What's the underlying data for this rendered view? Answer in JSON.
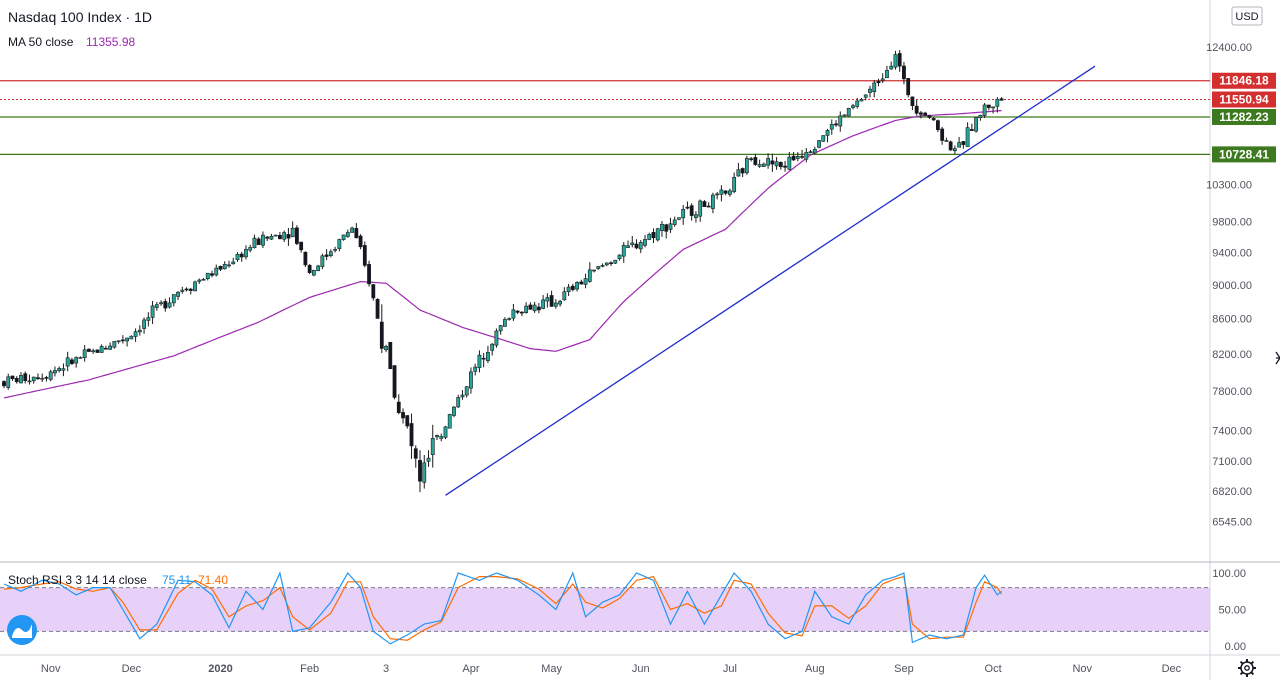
{
  "header": {
    "title": "Nasdaq 100 Index · 1D",
    "ma_label": "MA 50 close",
    "ma_value": "11355.98",
    "currency": "USD"
  },
  "indicator": {
    "label": "Stoch RSI 3 3 14 14 close",
    "k_value": "75.11",
    "d_value": "71.40",
    "upper": 80,
    "lower": 20,
    "ticks": [
      "100.00",
      "50.00",
      "0.00"
    ]
  },
  "colors": {
    "up": "#26a69a",
    "up_fill": "#ffffff",
    "candle": "#1a1a1a",
    "down_fill": "#131722",
    "ma": "#9c27b0",
    "trend": "#1e2bcc",
    "resistance": "#d32f2f",
    "support": "#3d7a1f",
    "k_line": "#2196f3",
    "d_line": "#ff6d00",
    "band": "#e1c5f7"
  },
  "chart_data": {
    "type": "candlestick",
    "title": "Nasdaq 100 Index · 1D",
    "y_ticks": [
      6545,
      6820,
      7100,
      7400,
      7800,
      8200,
      8600,
      9000,
      9400,
      9800,
      10300,
      12400
    ],
    "x_ticks": [
      "Nov",
      "Dec",
      "2020",
      "Feb",
      "3",
      "Apr",
      "May",
      "Jun",
      "Jul",
      "Aug",
      "Sep",
      "Oct",
      "Nov",
      "Dec"
    ],
    "x_tick_index": [
      11,
      30,
      51,
      72,
      90,
      110,
      129,
      150,
      171,
      191,
      212,
      233,
      254,
      275
    ],
    "ylim": [
      6350,
      13100
    ],
    "price_levels": [
      {
        "value": 11846.18,
        "label": "11846.18",
        "color": "#d32f2f",
        "kind": "resistance"
      },
      {
        "value": 11550.94,
        "label": "11550.94",
        "color": "#d32f2f",
        "kind": "last-price"
      },
      {
        "value": 11282.23,
        "label": "11282.23",
        "color": "#3d7a1f",
        "kind": "support"
      },
      {
        "value": 10728.41,
        "label": "10728.41",
        "color": "#3d7a1f",
        "kind": "support"
      }
    ],
    "price_anchors": [
      [
        0,
        7900
      ],
      [
        10,
        7990
      ],
      [
        20,
        8200
      ],
      [
        30,
        8420
      ],
      [
        40,
        8900
      ],
      [
        50,
        9170
      ],
      [
        60,
        9550
      ],
      [
        68,
        9700
      ],
      [
        72,
        9150
      ],
      [
        82,
        9720
      ],
      [
        86,
        9050
      ],
      [
        90,
        8150
      ],
      [
        94,
        7500
      ],
      [
        98,
        6950
      ],
      [
        101,
        7200
      ],
      [
        108,
        7800
      ],
      [
        114,
        8300
      ],
      [
        120,
        8700
      ],
      [
        130,
        8800
      ],
      [
        140,
        9200
      ],
      [
        150,
        9550
      ],
      [
        160,
        9900
      ],
      [
        170,
        10150
      ],
      [
        176,
        10700
      ],
      [
        183,
        10550
      ],
      [
        190,
        10850
      ],
      [
        197,
        11250
      ],
      [
        205,
        11750
      ],
      [
        210,
        12300
      ],
      [
        212,
        11800
      ],
      [
        214,
        11500
      ],
      [
        218,
        11300
      ],
      [
        222,
        10900
      ],
      [
        225,
        10800
      ],
      [
        228,
        11150
      ],
      [
        231,
        11420
      ],
      [
        235,
        11550
      ]
    ],
    "ma_anchors": [
      [
        0,
        7730
      ],
      [
        20,
        7920
      ],
      [
        40,
        8180
      ],
      [
        60,
        8560
      ],
      [
        72,
        8850
      ],
      [
        84,
        9040
      ],
      [
        90,
        9020
      ],
      [
        98,
        8700
      ],
      [
        108,
        8500
      ],
      [
        124,
        8260
      ],
      [
        130,
        8230
      ],
      [
        138,
        8360
      ],
      [
        146,
        8800
      ],
      [
        160,
        9440
      ],
      [
        170,
        9700
      ],
      [
        180,
        10250
      ],
      [
        190,
        10720
      ],
      [
        200,
        11000
      ],
      [
        210,
        11230
      ],
      [
        216,
        11300
      ],
      [
        225,
        11330
      ],
      [
        235,
        11380
      ]
    ],
    "trendline": [
      [
        104,
        6780
      ],
      [
        257,
        12080
      ]
    ],
    "k_anchors": [
      [
        0,
        85
      ],
      [
        4,
        75
      ],
      [
        9,
        90
      ],
      [
        13,
        85
      ],
      [
        17,
        70
      ],
      [
        21,
        80
      ],
      [
        25,
        80
      ],
      [
        28,
        50
      ],
      [
        32,
        10
      ],
      [
        36,
        30
      ],
      [
        41,
        90
      ],
      [
        45,
        88
      ],
      [
        49,
        70
      ],
      [
        53,
        25
      ],
      [
        57,
        75
      ],
      [
        61,
        50
      ],
      [
        65,
        100
      ],
      [
        68,
        20
      ],
      [
        72,
        25
      ],
      [
        77,
        60
      ],
      [
        81,
        100
      ],
      [
        84,
        80
      ],
      [
        87,
        20
      ],
      [
        91,
        3
      ],
      [
        95,
        15
      ],
      [
        99,
        30
      ],
      [
        103,
        35
      ],
      [
        107,
        100
      ],
      [
        112,
        90
      ],
      [
        116,
        100
      ],
      [
        121,
        90
      ],
      [
        126,
        70
      ],
      [
        130,
        50
      ],
      [
        134,
        100
      ],
      [
        137,
        40
      ],
      [
        141,
        60
      ],
      [
        145,
        70
      ],
      [
        149,
        100
      ],
      [
        153,
        90
      ],
      [
        157,
        30
      ],
      [
        161,
        75
      ],
      [
        165,
        30
      ],
      [
        169,
        70
      ],
      [
        172,
        100
      ],
      [
        176,
        75
      ],
      [
        180,
        30
      ],
      [
        184,
        10
      ],
      [
        188,
        20
      ],
      [
        191,
        75
      ],
      [
        195,
        40
      ],
      [
        199,
        30
      ],
      [
        203,
        70
      ],
      [
        207,
        90
      ],
      [
        210,
        95
      ],
      [
        212,
        100
      ],
      [
        214,
        5
      ],
      [
        218,
        15
      ],
      [
        222,
        10
      ],
      [
        226,
        15
      ],
      [
        229,
        80
      ],
      [
        231,
        97
      ],
      [
        234,
        70
      ],
      [
        235,
        75
      ]
    ],
    "d_anchors": [
      [
        0,
        78
      ],
      [
        4,
        80
      ],
      [
        9,
        85
      ],
      [
        13,
        88
      ],
      [
        17,
        78
      ],
      [
        21,
        75
      ],
      [
        25,
        80
      ],
      [
        28,
        60
      ],
      [
        32,
        22
      ],
      [
        36,
        22
      ],
      [
        41,
        72
      ],
      [
        45,
        90
      ],
      [
        49,
        78
      ],
      [
        53,
        40
      ],
      [
        57,
        55
      ],
      [
        61,
        62
      ],
      [
        65,
        80
      ],
      [
        68,
        40
      ],
      [
        72,
        22
      ],
      [
        77,
        45
      ],
      [
        81,
        88
      ],
      [
        84,
        88
      ],
      [
        87,
        40
      ],
      [
        91,
        10
      ],
      [
        95,
        8
      ],
      [
        99,
        22
      ],
      [
        103,
        33
      ],
      [
        107,
        80
      ],
      [
        112,
        95
      ],
      [
        116,
        95
      ],
      [
        121,
        92
      ],
      [
        126,
        78
      ],
      [
        130,
        58
      ],
      [
        134,
        85
      ],
      [
        137,
        60
      ],
      [
        141,
        52
      ],
      [
        145,
        65
      ],
      [
        149,
        90
      ],
      [
        153,
        95
      ],
      [
        157,
        50
      ],
      [
        161,
        58
      ],
      [
        165,
        45
      ],
      [
        169,
        55
      ],
      [
        172,
        90
      ],
      [
        176,
        85
      ],
      [
        180,
        45
      ],
      [
        184,
        18
      ],
      [
        188,
        14
      ],
      [
        191,
        55
      ],
      [
        195,
        55
      ],
      [
        199,
        38
      ],
      [
        203,
        55
      ],
      [
        207,
        85
      ],
      [
        210,
        92
      ],
      [
        212,
        95
      ],
      [
        214,
        30
      ],
      [
        218,
        10
      ],
      [
        222,
        12
      ],
      [
        226,
        12
      ],
      [
        229,
        60
      ],
      [
        231,
        88
      ],
      [
        234,
        80
      ],
      [
        235,
        71
      ]
    ]
  }
}
